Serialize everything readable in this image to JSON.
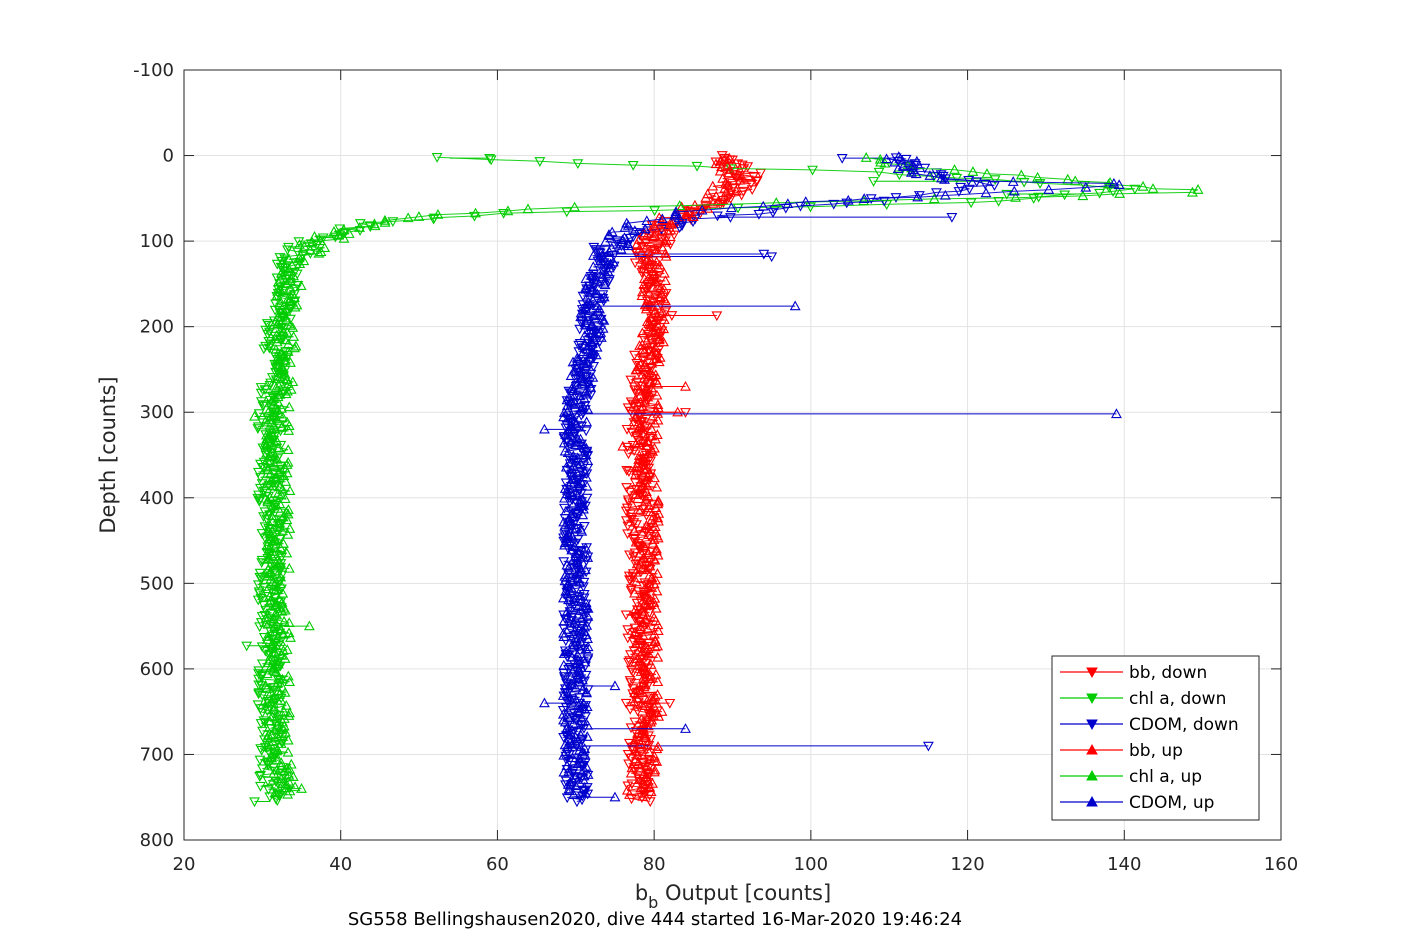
{
  "figure": {
    "caption": "SG558 Bellingshausen2020, dive 444 started 16-Mar-2020 19:46:24"
  },
  "chart_data": {
    "type": "scatter",
    "title": "",
    "xlabel_main": "b",
    "xlabel_sub": "b",
    "xlabel_rest": " Output [counts]",
    "ylabel": "Depth [counts]",
    "xlim": [
      20,
      160
    ],
    "ylim": [
      -100,
      800
    ],
    "y_reversed": true,
    "grid": true,
    "legend_position": "bottom-right",
    "xticks": [
      20,
      40,
      60,
      80,
      100,
      120,
      140,
      160
    ],
    "yticks": [
      -100,
      0,
      100,
      200,
      300,
      400,
      500,
      600,
      700,
      800
    ],
    "series": [
      {
        "name": "bb, down",
        "color": "#ff0000",
        "marker": "triangle-down",
        "profile": [
          [
            88,
            0
          ],
          [
            92,
            20
          ],
          [
            90,
            45
          ],
          [
            86,
            65
          ],
          [
            82,
            80
          ],
          [
            80,
            100
          ],
          [
            79,
            130
          ],
          [
            80,
            160
          ],
          [
            81,
            190
          ],
          [
            79,
            230
          ],
          [
            78,
            300
          ],
          [
            78,
            400
          ],
          [
            78,
            500
          ],
          [
            78,
            600
          ],
          [
            78,
            700
          ],
          [
            78,
            755
          ]
        ],
        "outliers": [
          [
            88,
            187
          ],
          [
            90,
            5
          ],
          [
            93,
            30
          ],
          [
            84,
            300
          ],
          [
            82,
            640
          ]
        ]
      },
      {
        "name": "chl a, down",
        "color": "#00cc00",
        "marker": "triangle-down",
        "profile": [
          [
            51,
            2
          ],
          [
            80,
            12
          ],
          [
            110,
            20
          ],
          [
            135,
            35
          ],
          [
            142,
            40
          ],
          [
            120,
            55
          ],
          [
            90,
            62
          ],
          [
            60,
            68
          ],
          [
            45,
            78
          ],
          [
            38,
            95
          ],
          [
            35,
            110
          ],
          [
            33,
            130
          ],
          [
            33,
            160
          ],
          [
            32,
            200
          ],
          [
            31,
            300
          ],
          [
            31,
            400
          ],
          [
            31,
            500
          ],
          [
            31,
            600
          ],
          [
            31,
            700
          ],
          [
            31,
            755
          ]
        ],
        "outliers": [
          [
            59,
            3
          ],
          [
            28,
            573
          ],
          [
            29,
            755
          ],
          [
            108,
            30
          ],
          [
            125,
            45
          ]
        ]
      },
      {
        "name": "CDOM, down",
        "color": "#0000cc",
        "marker": "triangle-down",
        "profile": [
          [
            110,
            2
          ],
          [
            115,
            20
          ],
          [
            122,
            35
          ],
          [
            110,
            50
          ],
          [
            95,
            65
          ],
          [
            85,
            75
          ],
          [
            78,
            90
          ],
          [
            74,
            110
          ],
          [
            73,
            140
          ],
          [
            72,
            170
          ],
          [
            72,
            200
          ],
          [
            71,
            250
          ],
          [
            70,
            300
          ],
          [
            70,
            400
          ],
          [
            70,
            500
          ],
          [
            70,
            600
          ],
          [
            70,
            700
          ],
          [
            70,
            755
          ]
        ],
        "outliers": [
          [
            115,
            690
          ],
          [
            118,
            72
          ],
          [
            94,
            115
          ],
          [
            95,
            118
          ],
          [
            104,
            3
          ]
        ]
      },
      {
        "name": "bb, up",
        "color": "#ff0000",
        "marker": "triangle-up",
        "profile": [
          [
            89,
            3
          ],
          [
            91,
            25
          ],
          [
            88,
            50
          ],
          [
            83,
            70
          ],
          [
            80,
            95
          ],
          [
            80,
            130
          ],
          [
            80,
            170
          ],
          [
            80,
            200
          ],
          [
            79,
            250
          ],
          [
            79,
            300
          ],
          [
            79,
            400
          ],
          [
            79,
            500
          ],
          [
            79,
            600
          ],
          [
            79,
            700
          ],
          [
            78,
            750
          ]
        ],
        "outliers": [
          [
            83,
            300
          ],
          [
            84,
            270
          ],
          [
            81,
            650
          ],
          [
            76,
            340
          ]
        ]
      },
      {
        "name": "chl a, up",
        "color": "#00cc00",
        "marker": "triangle-up",
        "profile": [
          [
            105,
            3
          ],
          [
            115,
            15
          ],
          [
            130,
            25
          ],
          [
            149,
            42
          ],
          [
            130,
            48
          ],
          [
            95,
            56
          ],
          [
            70,
            60
          ],
          [
            50,
            70
          ],
          [
            40,
            90
          ],
          [
            36,
            108
          ],
          [
            34,
            130
          ],
          [
            33,
            170
          ],
          [
            33,
            200
          ],
          [
            32,
            300
          ],
          [
            32,
            400
          ],
          [
            32,
            500
          ],
          [
            32,
            600
          ],
          [
            32,
            700
          ],
          [
            33,
            748
          ]
        ],
        "outliers": [
          [
            29,
            305
          ],
          [
            35,
            740
          ],
          [
            36,
            550
          ]
        ]
      },
      {
        "name": "CDOM, up",
        "color": "#0000cc",
        "marker": "triangle-up",
        "profile": [
          [
            111,
            2
          ],
          [
            112,
            15
          ],
          [
            120,
            30
          ],
          [
            141,
            33
          ],
          [
            118,
            45
          ],
          [
            100,
            55
          ],
          [
            85,
            65
          ],
          [
            78,
            80
          ],
          [
            75,
            100
          ],
          [
            73,
            130
          ],
          [
            72,
            180
          ],
          [
            72,
            200
          ],
          [
            71,
            250
          ],
          [
            70,
            300
          ],
          [
            70,
            400
          ],
          [
            70,
            500
          ],
          [
            70,
            600
          ],
          [
            70,
            700
          ],
          [
            70,
            750
          ]
        ],
        "outliers": [
          [
            139,
            302
          ],
          [
            98,
            176
          ],
          [
            84,
            670
          ],
          [
            66,
            320
          ],
          [
            66,
            640
          ],
          [
            75,
            620
          ],
          [
            75,
            750
          ]
        ]
      }
    ]
  }
}
